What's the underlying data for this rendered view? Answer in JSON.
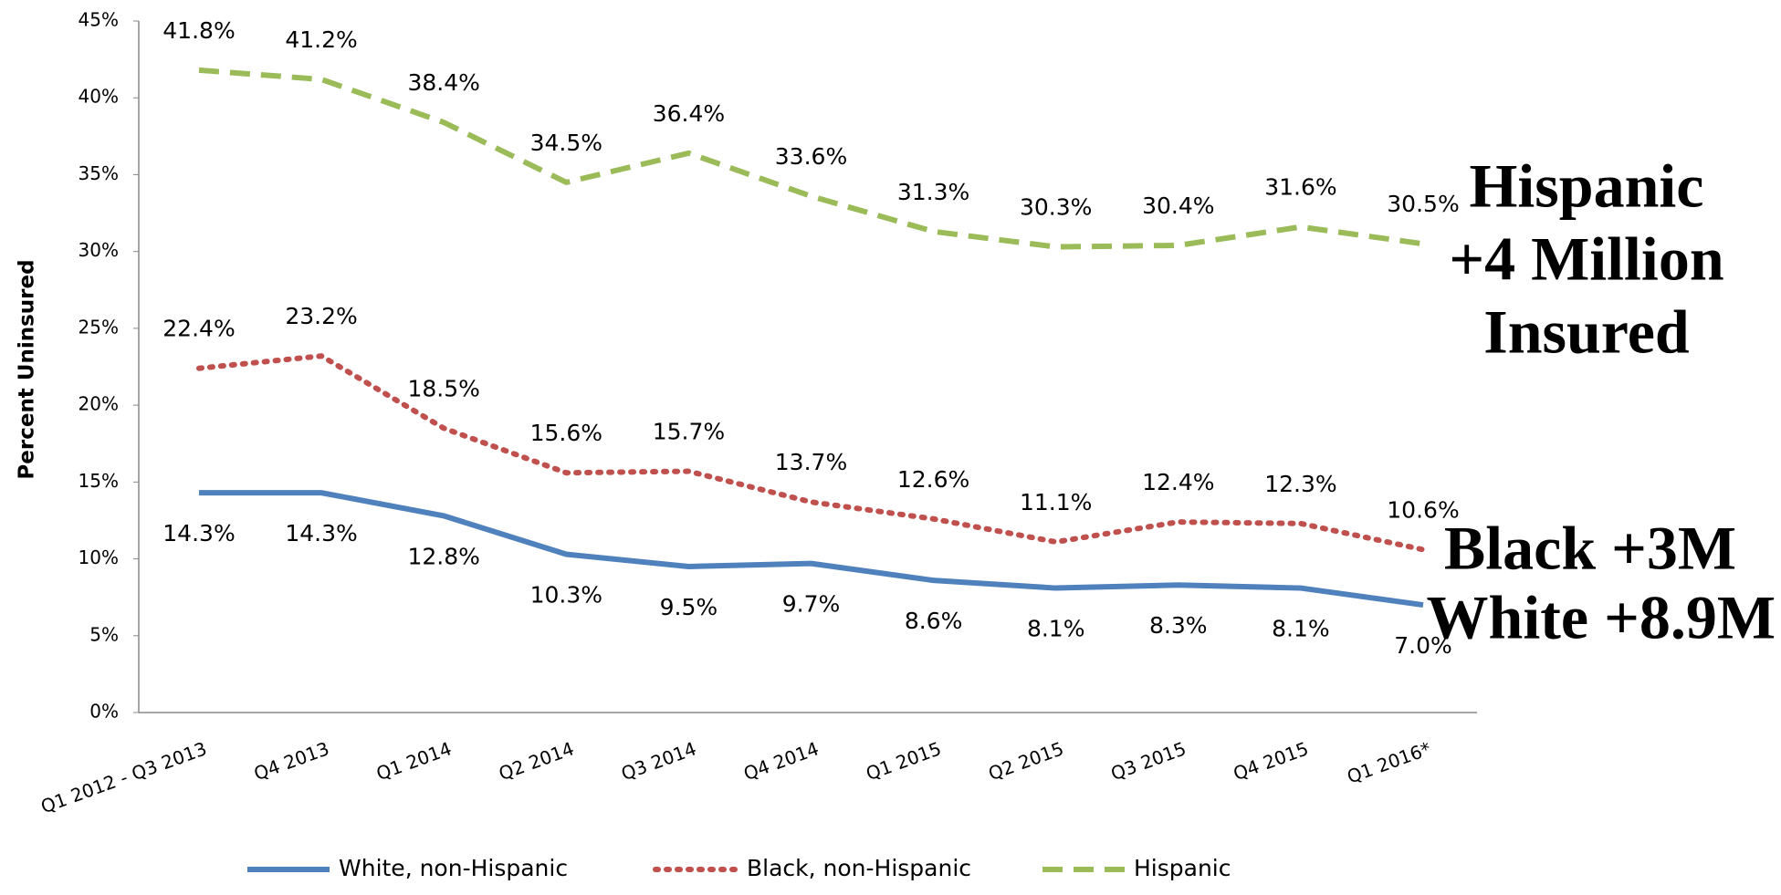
{
  "chart_data": {
    "type": "line",
    "y_label": "Percent Uninsured",
    "categories": [
      "Q1 2012 - Q3 2013",
      "Q4 2013",
      "Q1 2014",
      "Q2 2014",
      "Q3 2014",
      "Q4 2014",
      "Q1 2015",
      "Q2 2015",
      "Q3 2015",
      "Q4 2015",
      "Q1 2016*"
    ],
    "ylim": [
      0,
      45
    ],
    "yticks": [
      {
        "value": 0,
        "label": "0%"
      },
      {
        "value": 5,
        "label": "5%"
      },
      {
        "value": 10,
        "label": "10%"
      },
      {
        "value": 15,
        "label": "15%"
      },
      {
        "value": 20,
        "label": "20%"
      },
      {
        "value": 25,
        "label": "25%"
      },
      {
        "value": 30,
        "label": "30%"
      },
      {
        "value": 35,
        "label": "35%"
      },
      {
        "value": 40,
        "label": "40%"
      },
      {
        "value": 45,
        "label": "45%"
      }
    ],
    "grid": false,
    "legend": "bottom",
    "series": [
      {
        "name": "White, non-Hispanic",
        "color": "#4f81bd",
        "dash": "solid",
        "label_position": "below",
        "values": [
          14.3,
          14.3,
          12.8,
          10.3,
          9.5,
          9.7,
          8.6,
          8.1,
          8.3,
          8.1,
          7.0
        ],
        "value_labels": [
          "14.3%",
          "14.3%",
          "12.8%",
          "10.3%",
          "9.5%",
          "9.7%",
          "8.6%",
          "8.1%",
          "8.3%",
          "8.1%",
          "7.0%"
        ]
      },
      {
        "name": "Black, non-Hispanic",
        "color": "#c0504d",
        "dash": "dotted",
        "label_position": "above",
        "values": [
          22.4,
          23.2,
          18.5,
          15.6,
          15.7,
          13.7,
          12.6,
          11.1,
          12.4,
          12.3,
          10.6
        ],
        "value_labels": [
          "22.4%",
          "23.2%",
          "18.5%",
          "15.6%",
          "15.7%",
          "13.7%",
          "12.6%",
          "11.1%",
          "12.4%",
          "12.3%",
          "10.6%"
        ]
      },
      {
        "name": "Hispanic",
        "color": "#9bbb59",
        "dash": "dashed",
        "label_position": "above",
        "values": [
          41.8,
          41.2,
          38.4,
          34.5,
          36.4,
          33.6,
          31.3,
          30.3,
          30.4,
          31.6,
          30.5
        ],
        "value_labels": [
          "41.8%",
          "41.2%",
          "38.4%",
          "34.5%",
          "36.4%",
          "33.6%",
          "31.3%",
          "30.3%",
          "30.4%",
          "31.6%",
          "30.5%"
        ]
      }
    ],
    "annotations": [
      {
        "lines": [
          "Hispanic",
          "+4 Million",
          "Insured"
        ],
        "color": "#4f6228"
      },
      {
        "lines": [
          "Black +3M"
        ],
        "color": "#c00000"
      },
      {
        "lines": [
          "White +8.9M"
        ],
        "color": "#1f77c4"
      }
    ]
  }
}
